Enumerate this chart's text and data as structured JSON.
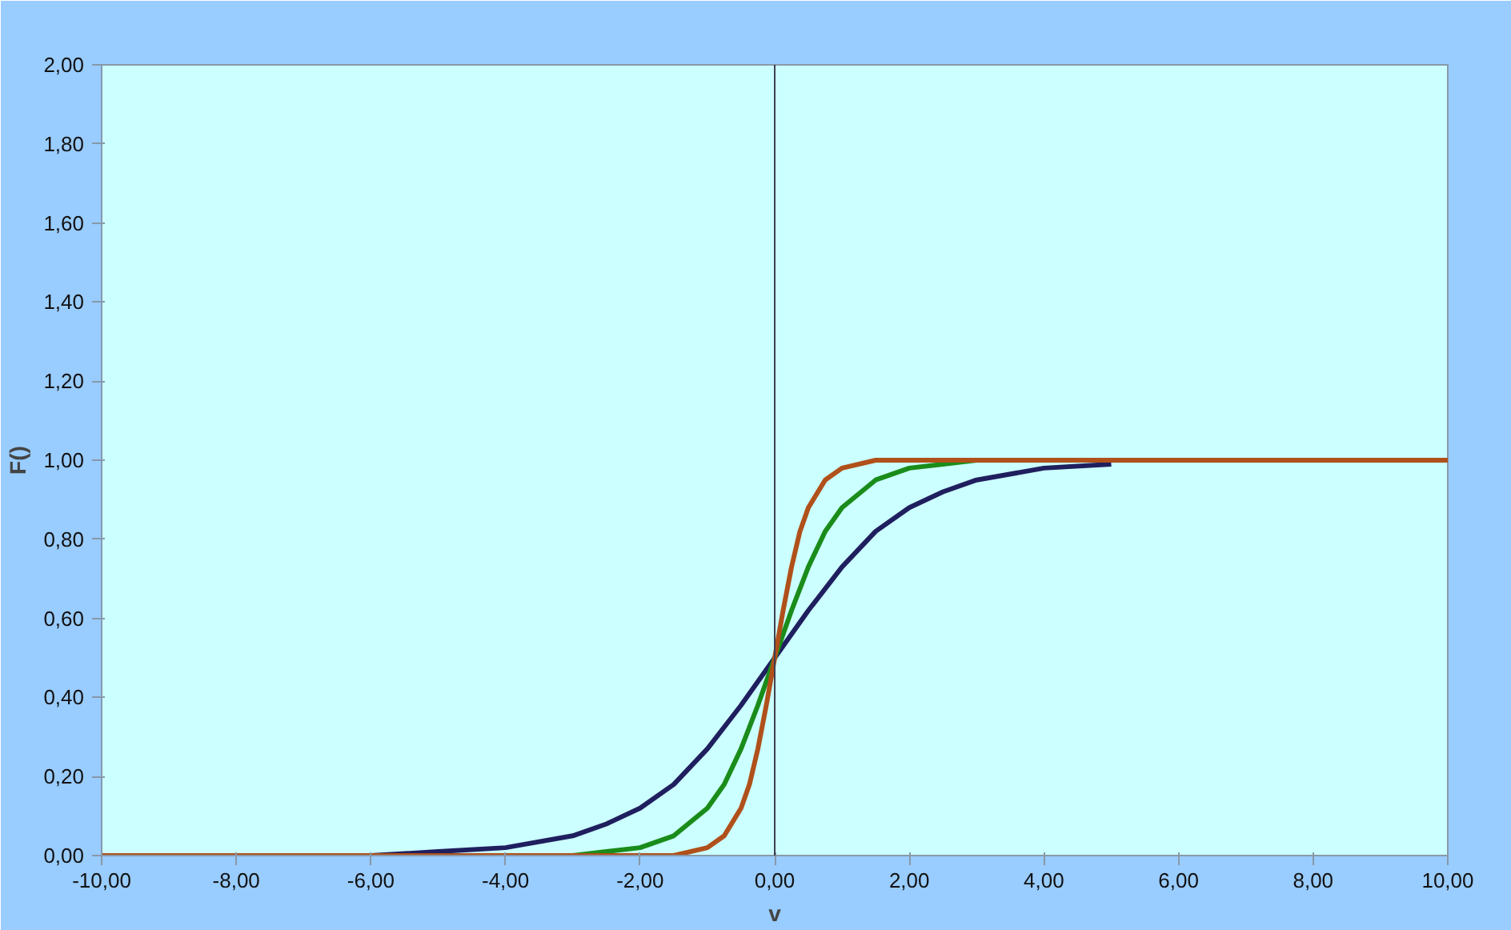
{
  "chart_data": {
    "type": "line",
    "xlabel": "v",
    "ylabel": "F()",
    "xlim": [
      -10,
      10
    ],
    "ylim": [
      0,
      2
    ],
    "xticks": [
      {
        "value": -10,
        "label": "-10,00"
      },
      {
        "value": -8,
        "label": "-8,00"
      },
      {
        "value": -6,
        "label": "-6,00"
      },
      {
        "value": -4,
        "label": "-4,00"
      },
      {
        "value": -2,
        "label": "-2,00"
      },
      {
        "value": 0,
        "label": "0,00"
      },
      {
        "value": 2,
        "label": "2,00"
      },
      {
        "value": 4,
        "label": "4,00"
      },
      {
        "value": 6,
        "label": "6,00"
      },
      {
        "value": 8,
        "label": "8,00"
      },
      {
        "value": 10,
        "label": "10,00"
      }
    ],
    "yticks": [
      {
        "value": 0,
        "label": "0,00"
      },
      {
        "value": 0.2,
        "label": "0,20"
      },
      {
        "value": 0.4,
        "label": "0,40"
      },
      {
        "value": 0.6,
        "label": "0,60"
      },
      {
        "value": 0.8,
        "label": "0,80"
      },
      {
        "value": 1,
        "label": "1,00"
      },
      {
        "value": 1.2,
        "label": "1,20"
      },
      {
        "value": 1.4,
        "label": "1,40"
      },
      {
        "value": 1.6,
        "label": "1,60"
      },
      {
        "value": 1.8,
        "label": "1,80"
      },
      {
        "value": 2,
        "label": "2,00"
      }
    ],
    "grid": false,
    "marker": "none",
    "line_style": "solid",
    "ref_lines": [
      {
        "axis": "x",
        "value": 0,
        "label": null,
        "color": "#404050"
      }
    ],
    "series": [
      {
        "color": "#1f1f5f",
        "x": [
          -6,
          -5,
          -4,
          -3,
          -2.5,
          -2,
          -1.5,
          -1,
          -0.5,
          0,
          0.5,
          1,
          1.5,
          2,
          2.5,
          3,
          4,
          5
        ],
        "values": [
          0.0,
          0.01,
          0.02,
          0.05,
          0.08,
          0.12,
          0.18,
          0.27,
          0.38,
          0.5,
          0.62,
          0.73,
          0.82,
          0.88,
          0.92,
          0.95,
          0.98,
          0.99
        ]
      },
      {
        "color": "#1a8c1a",
        "x": [
          -3,
          -2.5,
          -2,
          -1.5,
          -1,
          -0.75,
          -0.5,
          -0.25,
          0,
          0.25,
          0.5,
          0.75,
          1,
          1.5,
          2,
          2.5,
          3
        ],
        "values": [
          0.0,
          0.01,
          0.02,
          0.05,
          0.12,
          0.18,
          0.27,
          0.38,
          0.5,
          0.62,
          0.73,
          0.82,
          0.88,
          0.95,
          0.98,
          0.99,
          1.0
        ]
      },
      {
        "color": "#b0501a",
        "x": [
          -10,
          -1.5,
          -1,
          -0.75,
          -0.5,
          -0.375,
          -0.25,
          -0.125,
          0,
          0.125,
          0.25,
          0.375,
          0.5,
          0.75,
          1,
          1.5,
          10
        ],
        "values": [
          0.0,
          0.0,
          0.02,
          0.05,
          0.12,
          0.18,
          0.27,
          0.38,
          0.5,
          0.62,
          0.73,
          0.82,
          0.88,
          0.95,
          0.98,
          1.0,
          1.0
        ]
      }
    ]
  }
}
